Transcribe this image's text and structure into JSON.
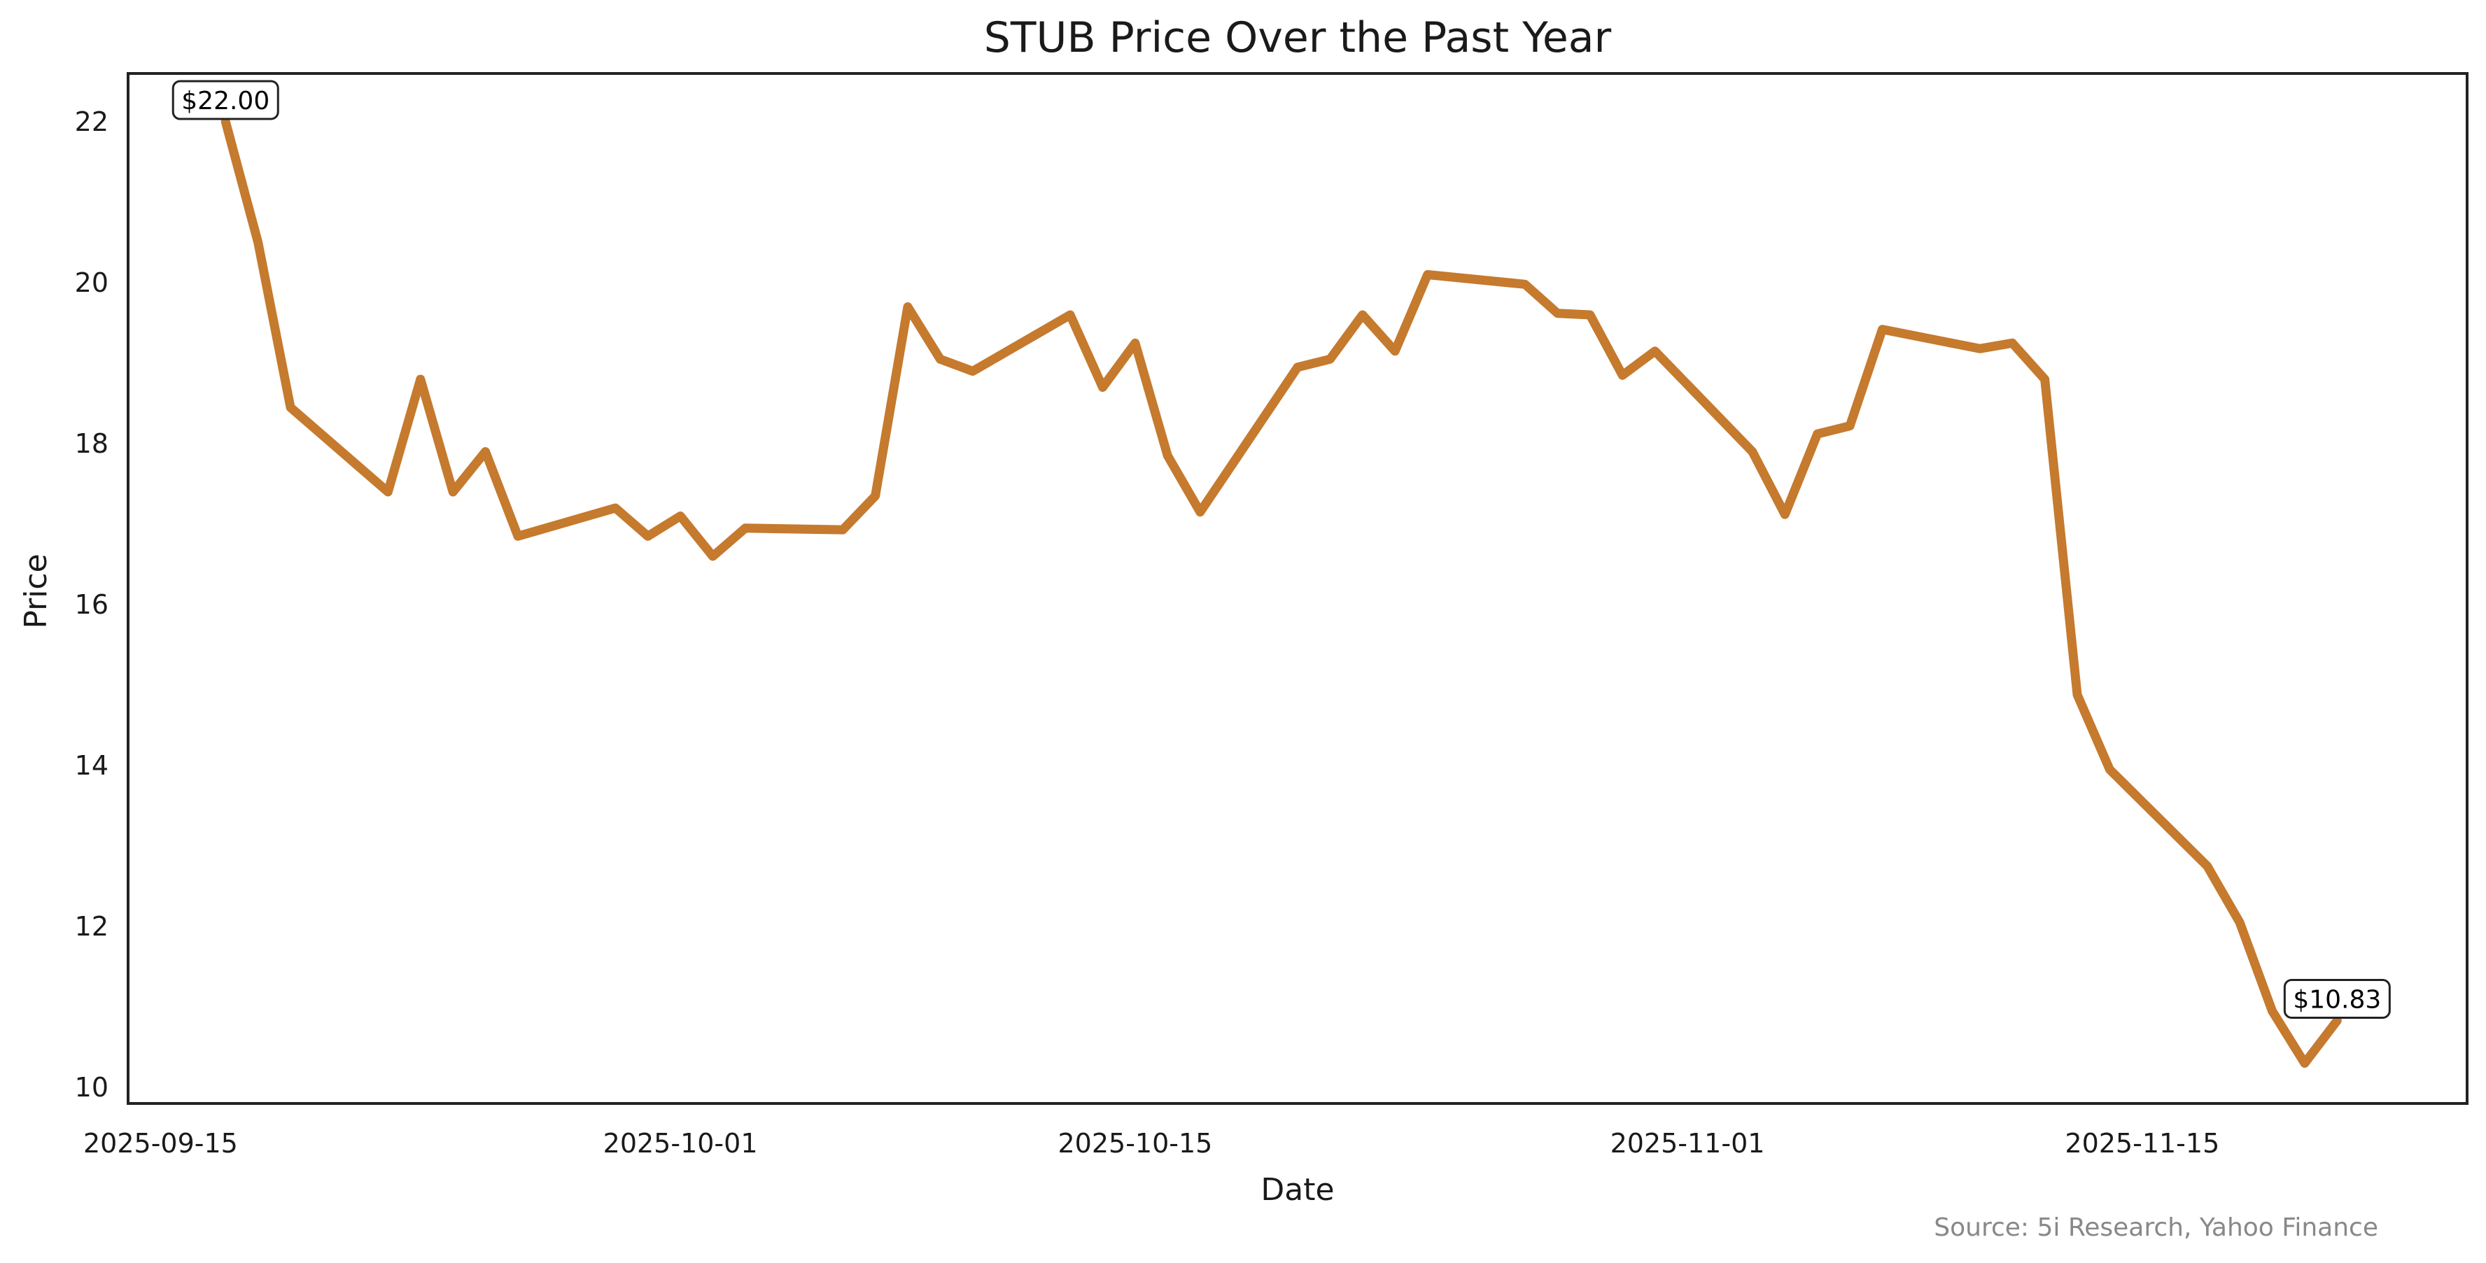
{
  "chart_data": {
    "type": "line",
    "title": "STUB Price Over the Past Year",
    "xlabel": "Date",
    "ylabel": "Price",
    "source": "Source: 5i Research, Yahoo Finance",
    "line_color": "#c57a2e",
    "xlim": [
      "2025-09-14",
      "2025-11-25"
    ],
    "ylim": [
      9.8,
      22.6
    ],
    "yticks": [
      10,
      12,
      14,
      16,
      18,
      20,
      22
    ],
    "xticks": [
      "2025-09-15",
      "2025-10-01",
      "2025-10-15",
      "2025-11-01",
      "2025-11-15"
    ],
    "grid": false,
    "series": [
      {
        "name": "STUB",
        "x": [
          "2025-09-17",
          "2025-09-18",
          "2025-09-19",
          "2025-09-22",
          "2025-09-23",
          "2025-09-24",
          "2025-09-25",
          "2025-09-26",
          "2025-09-29",
          "2025-09-30",
          "2025-10-01",
          "2025-10-02",
          "2025-10-03",
          "2025-10-06",
          "2025-10-07",
          "2025-10-08",
          "2025-10-09",
          "2025-10-10",
          "2025-10-13",
          "2025-10-14",
          "2025-10-15",
          "2025-10-16",
          "2025-10-17",
          "2025-10-20",
          "2025-10-21",
          "2025-10-22",
          "2025-10-23",
          "2025-10-24",
          "2025-10-27",
          "2025-10-28",
          "2025-10-29",
          "2025-10-30",
          "2025-10-31",
          "2025-11-03",
          "2025-11-04",
          "2025-11-05",
          "2025-11-06",
          "2025-11-07",
          "2025-11-10",
          "2025-11-11",
          "2025-11-12",
          "2025-11-13",
          "2025-11-14",
          "2025-11-17",
          "2025-11-18",
          "2025-11-19",
          "2025-11-20",
          "2025-11-21"
        ],
        "values": [
          22.0,
          20.5,
          18.45,
          17.4,
          18.8,
          17.4,
          17.9,
          16.85,
          17.2,
          16.85,
          17.1,
          16.6,
          16.95,
          16.93,
          17.35,
          19.7,
          19.05,
          18.9,
          19.6,
          18.7,
          19.25,
          17.85,
          17.15,
          18.95,
          19.05,
          19.6,
          19.15,
          20.1,
          19.98,
          19.62,
          19.6,
          18.85,
          19.15,
          17.9,
          17.12,
          18.12,
          18.22,
          19.42,
          19.18,
          19.25,
          18.8,
          14.88,
          13.95,
          12.75,
          12.05,
          10.95,
          10.3,
          10.83
        ]
      }
    ],
    "annotations": [
      {
        "text": "$22.00",
        "x": "2025-09-17",
        "y": 22.0
      },
      {
        "text": "$10.83",
        "x": "2025-11-21",
        "y": 10.83
      }
    ]
  }
}
